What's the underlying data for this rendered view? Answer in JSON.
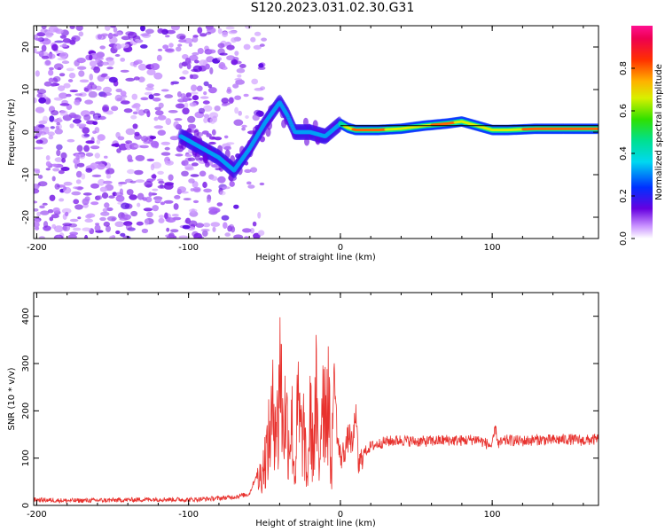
{
  "title": "S120.2023.031.02.30.G31",
  "colors": {
    "snr_line": "#e8322e",
    "ridge": "#dd1111",
    "axis": "#000000",
    "background": "#ffffff"
  },
  "chart_data": [
    {
      "type": "heatmap",
      "title": "",
      "xlabel": "Height of straight line (km)",
      "ylabel": "Frequency (Hz)",
      "xlim": [
        -202,
        170
      ],
      "ylim": [
        -25,
        25
      ],
      "xticks": [
        "-200",
        "-100",
        "0",
        "100"
      ],
      "yticks": [
        "-20",
        "-10",
        "0",
        "10",
        "20"
      ],
      "colorbar": {
        "label": "Normalized spectral amplitude",
        "range": [
          0,
          1
        ],
        "ticks": [
          "0.0",
          "0.2",
          "0.4",
          "0.6",
          "0.8"
        ],
        "colormap": "rainbow (white-violet-blue-cyan-green-yellow-orange-red-magenta)"
      },
      "noise_region_x": [
        -202,
        -70
      ],
      "ridge": {
        "x": [
          -105,
          -95,
          -80,
          -70,
          -60,
          -50,
          -40,
          -35,
          -30,
          -20,
          -10,
          -5,
          0,
          5,
          10,
          25,
          40,
          55,
          70,
          80,
          85,
          90,
          100,
          110,
          130,
          170
        ],
        "y": [
          -1,
          -3,
          -6,
          -9,
          -4,
          2,
          7,
          4,
          0,
          0,
          -1,
          0.5,
          2,
          1,
          0.5,
          0.5,
          0.8,
          1.5,
          2,
          2.5,
          2,
          1.5,
          0.5,
          0.5,
          0.8,
          0.8
        ]
      },
      "reference_line_y": 1.5
    },
    {
      "type": "line",
      "title": "",
      "xlabel": "Height of straight line (km)",
      "ylabel": "SNR (10 * v/v)",
      "xlim": [
        -202,
        170
      ],
      "ylim": [
        0,
        450
      ],
      "xticks": [
        "-200",
        "-100",
        "0",
        "100"
      ],
      "yticks": [
        "0",
        "100",
        "200",
        "300",
        "400"
      ],
      "grid": false,
      "series": [
        {
          "x": [
            -202,
            -180,
            -150,
            -120,
            -100,
            -80,
            -70,
            -60,
            -52,
            -48,
            -45,
            -43,
            -41,
            -40,
            -38,
            -36,
            -34,
            -32,
            -30,
            -28,
            -26,
            -24,
            -22,
            -20,
            -18,
            -16,
            -14,
            -12,
            -10,
            -8,
            -6,
            -4,
            -2,
            0,
            2,
            4,
            6,
            8,
            10,
            12,
            15,
            20,
            25,
            30,
            40,
            50,
            60,
            70,
            80,
            90,
            100,
            102,
            104,
            110,
            120,
            130,
            140,
            150,
            160,
            170
          ],
          "values": [
            10,
            8,
            9,
            11,
            10,
            13,
            16,
            22,
            90,
            160,
            240,
            300,
            190,
            445,
            230,
            260,
            180,
            240,
            70,
            280,
            190,
            210,
            60,
            250,
            150,
            300,
            80,
            360,
            280,
            320,
            90,
            290,
            140,
            100,
            110,
            130,
            150,
            120,
            200,
            80,
            110,
            125,
            130,
            135,
            138,
            135,
            136,
            138,
            137,
            140,
            125,
            165,
            130,
            138,
            136,
            139,
            138,
            140,
            137,
            140
          ]
        }
      ]
    }
  ]
}
